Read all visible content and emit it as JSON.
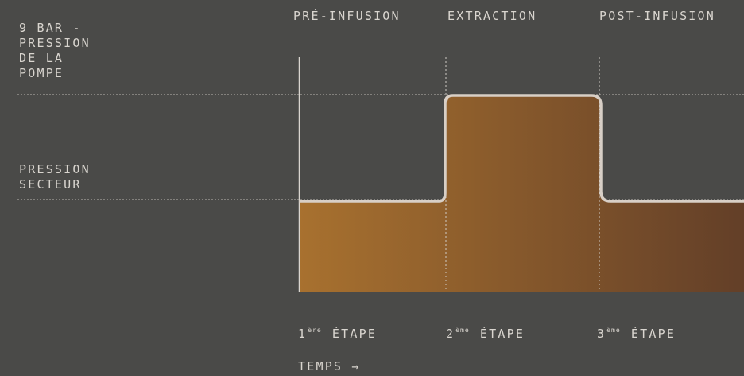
{
  "y_levels": [
    {
      "id": "pump",
      "label": "9 BAR -\nPRESSION\nDE LA\nPOMPE"
    },
    {
      "id": "mains",
      "label": "PRESSION\nSECTEUR"
    }
  ],
  "phases": [
    {
      "label": "PRÉ-INFUSION",
      "step_number": "1",
      "step_suffix": "ère",
      "step_word": "ÉTAPE",
      "level": "mains"
    },
    {
      "label": "EXTRACTION",
      "step_number": "2",
      "step_suffix": "ème",
      "step_word": "ÉTAPE",
      "level": "pump"
    },
    {
      "label": "POST-INFUSION",
      "step_number": "3",
      "step_suffix": "ème",
      "step_word": "ÉTAPE",
      "level": "mains"
    }
  ],
  "x_axis_title": "TEMPS →",
  "colors": {
    "background": "#4a4a48",
    "text": "#d9d5cf",
    "gradient_start": "#a8712f",
    "gradient_end": "#633f28",
    "outline": "#d8cfc6",
    "guide_lines": "#bcb8b2"
  }
}
